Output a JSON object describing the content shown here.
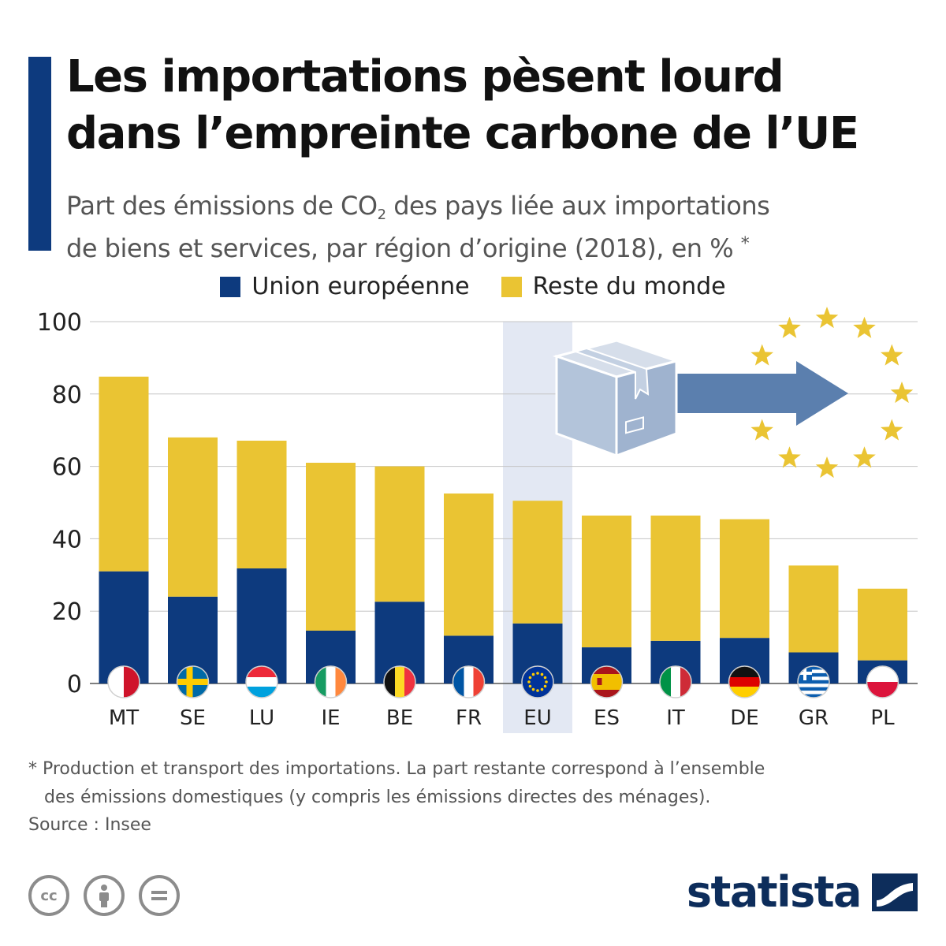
{
  "header": {
    "title_line1": "Les importations pèsent lourd",
    "title_line2": "dans l’empreinte carbone de l’UE",
    "subtitle_part1": "Part des émissions de CO",
    "subtitle_sub": "2",
    "subtitle_part2": " des pays liée aux importations",
    "subtitle_line2": "de biens et services, par région d’origine (2018), en %",
    "subtitle_asterisk": "*"
  },
  "legend": [
    {
      "label": "Union européenne",
      "color": "#0d3a7e"
    },
    {
      "label": "Reste du monde",
      "color": "#eac433"
    }
  ],
  "chart_data": {
    "type": "bar",
    "stacked": true,
    "categories": [
      "MT",
      "SE",
      "LU",
      "IE",
      "BE",
      "FR",
      "EU",
      "ES",
      "IT",
      "DE",
      "GR",
      "PL"
    ],
    "flags": [
      "flag-malta",
      "flag-sweden",
      "flag-luxembourg",
      "flag-ireland",
      "flag-belgium",
      "flag-france",
      "flag-eu",
      "flag-spain",
      "flag-italy",
      "flag-germany",
      "flag-greece",
      "flag-poland"
    ],
    "series": [
      {
        "name": "Union européenne",
        "color": "#0d3a7e",
        "values": [
          31,
          24,
          31.8,
          14.6,
          22.6,
          13.2,
          16.6,
          10,
          11.8,
          12.6,
          8.6,
          6.4
        ]
      },
      {
        "name": "Reste du monde",
        "color": "#eac433",
        "values": [
          53.8,
          44,
          35.3,
          46.4,
          37.4,
          39.3,
          33.9,
          36.4,
          34.6,
          32.8,
          24,
          19.8
        ]
      }
    ],
    "highlight_category": "EU",
    "highlight_color": "#e3e8f3",
    "yticks": [
      0,
      20,
      40,
      60,
      80,
      100
    ],
    "ylim": [
      0,
      100
    ],
    "grid": true
  },
  "footnote": {
    "line1": "* Production et transport des importations. La part restante correspond à l’ensemble",
    "line2": "des émissions domestiques (y compris les émissions directes des ménages)."
  },
  "source": "Source : Insee",
  "license_icons": [
    "cc-icon",
    "attribution-icon",
    "no-derivatives-icon"
  ],
  "brand": {
    "name": "statista"
  }
}
